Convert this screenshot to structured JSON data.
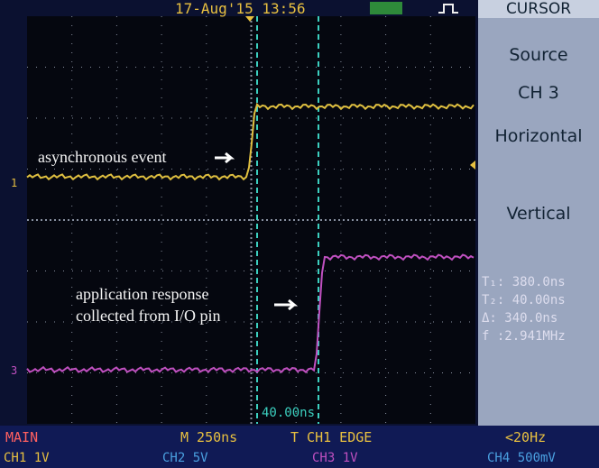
{
  "status": {
    "datetime": "17-Aug'15 13:56"
  },
  "menu": {
    "title": "CURSOR",
    "items": [
      "Source",
      "CH 3",
      "Horizontal",
      "Vertical"
    ]
  },
  "readouts": [
    "T₁: 380.0ns",
    "T₂: 40.00ns",
    "Δ: 340.0ns",
    "f :2.941MHz"
  ],
  "annotations": [
    "asynchronous event",
    "application response",
    "collected from I/O pin"
  ],
  "cursor_label": "40.00ns",
  "channel_markers": [
    "1",
    "3"
  ],
  "footer": {
    "row1": [
      "MAIN",
      "M 250ns",
      "T CH1 EDGE",
      "<20Hz"
    ],
    "row2": [
      "CH1 1V",
      "CH2 5V",
      "CH3 1V",
      "CH4 500mV"
    ]
  }
}
